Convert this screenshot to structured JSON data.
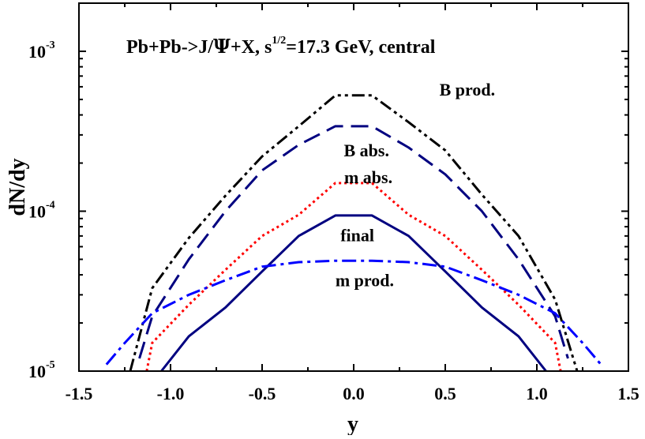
{
  "chart_data": {
    "type": "line",
    "title": {
      "prefix": "Pb+Pb->J/",
      "psi": "Ψ",
      "mid": "+X,  s",
      "superscript": "1/2",
      "suffix": "=17.3 GeV, central"
    },
    "xlabel": "y",
    "ylabel": "dN/dy",
    "xlim": [
      -1.5,
      1.5
    ],
    "ylim": [
      1e-05,
      0.002
    ],
    "yscale": "log",
    "x_ticks": [
      {
        "value": -1.5,
        "label": "-1.5"
      },
      {
        "value": -1.0,
        "label": "-1.0"
      },
      {
        "value": -0.5,
        "label": "-0.5"
      },
      {
        "value": 0.0,
        "label": "0.0"
      },
      {
        "value": 0.5,
        "label": "0.5"
      },
      {
        "value": 1.0,
        "label": "1.0"
      },
      {
        "value": 1.5,
        "label": "1.5"
      }
    ],
    "y_ticks": [
      {
        "value": 1e-05,
        "base": "10",
        "exponent": "-5"
      },
      {
        "value": 0.0001,
        "base": "10",
        "exponent": "-4"
      },
      {
        "value": 0.001,
        "base": "10",
        "exponent": "-3"
      }
    ],
    "series": [
      {
        "name": "B prod.",
        "color": "#000000",
        "style": "dash-dot-dot",
        "label_pos": [
          0.62,
          0.00053
        ],
        "x": [
          -1.22,
          -1.1,
          -0.9,
          -0.7,
          -0.5,
          -0.3,
          -0.1,
          0.1,
          0.3,
          0.5,
          0.7,
          0.9,
          1.1,
          1.22
        ],
        "y": [
          1e-05,
          3.3e-05,
          6.8e-05,
          0.000125,
          0.00022,
          0.00034,
          0.00053,
          0.00053,
          0.00036,
          0.00024,
          0.000127,
          7e-05,
          2.8e-05,
          1e-05
        ]
      },
      {
        "name": "B abs.",
        "color": "#000080",
        "style": "dash",
        "label_pos": [
          0.07,
          0.00022
        ],
        "x": [
          -1.17,
          -1.1,
          -0.9,
          -0.7,
          -0.5,
          -0.3,
          -0.1,
          0.1,
          0.3,
          0.5,
          0.7,
          0.9,
          1.1,
          1.17
        ],
        "y": [
          1.2e-05,
          2.2e-05,
          5e-05,
          0.0001,
          0.00018,
          0.00026,
          0.00034,
          0.00034,
          0.00025,
          0.00017,
          0.0001,
          5e-05,
          2.2e-05,
          1.2e-05
        ]
      },
      {
        "name": "m abs.",
        "color": "#ff0000",
        "style": "dot",
        "label_pos": [
          0.08,
          0.00015
        ],
        "x": [
          -1.13,
          -1.1,
          -0.9,
          -0.7,
          -0.5,
          -0.3,
          -0.1,
          0.1,
          0.3,
          0.5,
          0.7,
          0.9,
          1.1,
          1.13
        ],
        "y": [
          1e-05,
          1.5e-05,
          2.6e-05,
          4.3e-05,
          7e-05,
          9.5e-05,
          0.00015,
          0.00015,
          9.5e-05,
          7e-05,
          4.3e-05,
          2.6e-05,
          1.5e-05,
          1e-05
        ]
      },
      {
        "name": "final",
        "color": "#000080",
        "style": "solid",
        "label_pos": [
          0.02,
          6.5e-05
        ],
        "x": [
          -1.05,
          -0.9,
          -0.7,
          -0.5,
          -0.3,
          -0.1,
          0.1,
          0.3,
          0.5,
          0.7,
          0.9,
          1.05
        ],
        "y": [
          1e-05,
          1.65e-05,
          2.5e-05,
          4.2e-05,
          7e-05,
          9.4e-05,
          9.4e-05,
          7e-05,
          4.2e-05,
          2.5e-05,
          1.65e-05,
          1e-05
        ]
      },
      {
        "name": "m prod.",
        "color": "#0000ff",
        "style": "dash-dot",
        "label_pos": [
          0.06,
          3.4e-05
        ],
        "x": [
          -1.35,
          -1.25,
          -1.1,
          -0.9,
          -0.7,
          -0.5,
          -0.3,
          -0.1,
          0.1,
          0.3,
          0.5,
          0.7,
          0.9,
          1.1,
          1.25,
          1.35
        ],
        "y": [
          1.1e-05,
          1.5e-05,
          2.3e-05,
          3e-05,
          3.7e-05,
          4.5e-05,
          4.8e-05,
          4.9e-05,
          4.9e-05,
          4.8e-05,
          4.5e-05,
          3.7e-05,
          3e-05,
          2.3e-05,
          1.5e-05,
          1.1e-05
        ]
      }
    ]
  }
}
